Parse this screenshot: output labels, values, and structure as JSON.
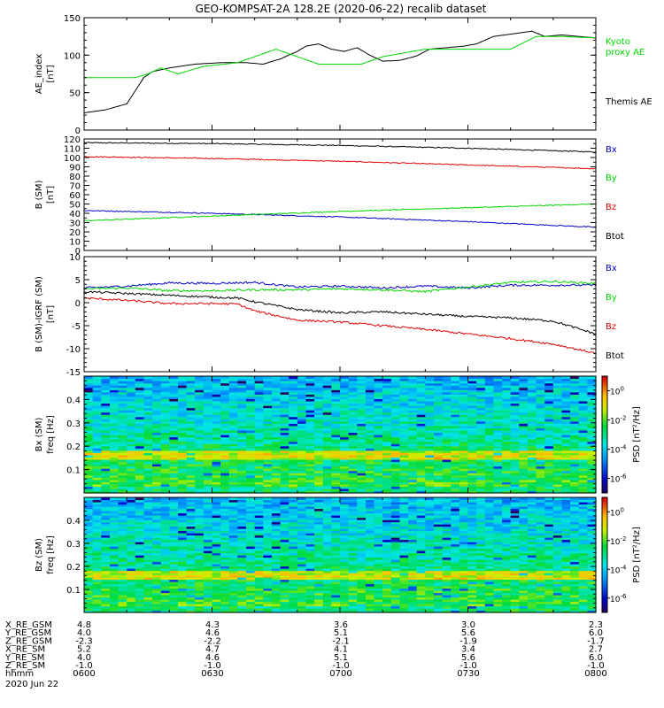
{
  "title": "GEO-KOMPSAT-2A 128.2E (2020-06-22) recalib dataset",
  "colors": {
    "black": "#000000",
    "red": "#e00000",
    "green": "#00d800",
    "blue": "#0000c8"
  },
  "chart_data": [
    {
      "type": "line",
      "ylabel": "AE_index",
      "yunit": "[nT]",
      "ylim": [
        0,
        150
      ],
      "yticks": [
        0,
        50,
        100,
        150
      ],
      "xlim": [
        0,
        120
      ],
      "legend": [
        "Kyoto proxy AE",
        "Themis AE"
      ],
      "series": [
        {
          "name": "Themis AE",
          "color": "black",
          "x": [
            0,
            5,
            10,
            14,
            16,
            20,
            26,
            32,
            38,
            42,
            46,
            50,
            52,
            55,
            58,
            61,
            64,
            67,
            70,
            74,
            78,
            81,
            85,
            89,
            92,
            96,
            100,
            105,
            108,
            112,
            116,
            120
          ],
          "y": [
            23,
            27,
            35,
            70,
            78,
            83,
            88,
            90,
            90,
            88,
            95,
            105,
            112,
            115,
            108,
            105,
            110,
            100,
            92,
            93,
            99,
            108,
            110,
            112,
            115,
            125,
            128,
            132,
            125,
            127,
            125,
            123
          ]
        },
        {
          "name": "Kyoto proxy AE",
          "color": "green",
          "x": [
            0,
            12,
            15,
            18,
            22,
            28,
            36,
            42,
            45,
            50,
            55,
            60,
            65,
            70,
            80,
            85,
            90,
            95,
            100,
            106,
            112,
            120
          ],
          "y": [
            70,
            70,
            75,
            83,
            75,
            85,
            90,
            102,
            108,
            98,
            88,
            88,
            88,
            98,
            108,
            108,
            108,
            108,
            108,
            125,
            125,
            123
          ]
        }
      ]
    },
    {
      "type": "line",
      "ylabel": "B (SM)",
      "yunit": "[nT]",
      "ylim": [
        0,
        120
      ],
      "yticks": [
        0,
        10,
        20,
        30,
        40,
        50,
        60,
        70,
        80,
        90,
        100,
        110,
        120
      ],
      "xlim": [
        0,
        120
      ],
      "legend": [
        "Bx",
        "By",
        "Bz",
        "Btot"
      ],
      "series": [
        {
          "name": "Btot",
          "color": "black",
          "x": [
            0,
            30,
            60,
            90,
            120
          ],
          "y": [
            116,
            115,
            113,
            110,
            106
          ]
        },
        {
          "name": "Bz",
          "color": "red",
          "x": [
            0,
            30,
            60,
            90,
            120
          ],
          "y": [
            101,
            99,
            96,
            92,
            88
          ]
        },
        {
          "name": "Bx",
          "color": "blue",
          "x": [
            0,
            30,
            60,
            90,
            120
          ],
          "y": [
            43,
            40,
            36,
            31,
            25
          ]
        },
        {
          "name": "By",
          "color": "green",
          "x": [
            0,
            30,
            60,
            90,
            120
          ],
          "y": [
            32,
            37,
            42,
            46,
            50
          ]
        }
      ]
    },
    {
      "type": "line",
      "ylabel": "B (SM)-IGRF (SM)",
      "yunit": "[nT]",
      "ylim": [
        -15,
        10
      ],
      "yticks": [
        -15,
        -10,
        -5,
        0,
        5,
        10
      ],
      "xlim": [
        0,
        120
      ],
      "legend": [
        "Bx",
        "By",
        "Bz",
        "Btot"
      ],
      "series": [
        {
          "name": "Bx",
          "color": "blue",
          "x": [
            0,
            10,
            20,
            30,
            40,
            50,
            60,
            70,
            80,
            90,
            100,
            110,
            120
          ],
          "y": [
            3.2,
            3.6,
            4.3,
            4.2,
            4.4,
            3.4,
            3.6,
            3.2,
            3.6,
            3.2,
            3.8,
            3.8,
            3.8
          ]
        },
        {
          "name": "By",
          "color": "green",
          "x": [
            0,
            10,
            20,
            30,
            40,
            50,
            60,
            70,
            80,
            90,
            100,
            110,
            120
          ],
          "y": [
            3.0,
            3.2,
            2.6,
            2.6,
            2.8,
            2.8,
            3.0,
            2.8,
            2.4,
            3.4,
            4.4,
            4.6,
            4.2
          ]
        },
        {
          "name": "Btot",
          "color": "black",
          "x": [
            0,
            10,
            20,
            30,
            36,
            40,
            50,
            60,
            70,
            80,
            90,
            100,
            110,
            120
          ],
          "y": [
            2.4,
            2.0,
            1.6,
            1.2,
            1.0,
            0.2,
            -1.5,
            -2.2,
            -2.0,
            -2.5,
            -3.0,
            -3.3,
            -4.0,
            -6.8
          ]
        },
        {
          "name": "Bz",
          "color": "red",
          "x": [
            0,
            10,
            20,
            30,
            36,
            40,
            50,
            60,
            70,
            80,
            90,
            100,
            110,
            120
          ],
          "y": [
            1.0,
            0.5,
            -0.2,
            -0.2,
            -0.3,
            -1.8,
            -3.8,
            -4.2,
            -5.0,
            -5.8,
            -6.8,
            -7.8,
            -9.0,
            -11.0
          ]
        }
      ]
    },
    {
      "type": "heatmap",
      "ylabel": "Bx (SM)",
      "yunit": "freq [Hz]",
      "ylim": [
        0,
        0.5
      ],
      "yticks": [
        0.1,
        0.2,
        0.3,
        0.4
      ],
      "xlim": [
        0,
        120
      ],
      "colorbar": {
        "label": "PSD [nT^2/Hz]",
        "ticks": [
          "10^0",
          "10^-2",
          "10^-4",
          "10^-6"
        ],
        "exponents": [
          0,
          -2,
          -4,
          -6
        ],
        "range": [
          -7,
          1
        ]
      }
    },
    {
      "type": "heatmap",
      "ylabel": "Bz (SM)",
      "yunit": "freq [Hz]",
      "ylim": [
        0,
        0.5
      ],
      "yticks": [
        0.1,
        0.2,
        0.3,
        0.4
      ],
      "xlim": [
        0,
        120
      ],
      "colorbar": {
        "label": "PSD [nT^2/Hz]",
        "ticks": [
          "10^0",
          "10^-2",
          "10^-4",
          "10^-6"
        ],
        "exponents": [
          0,
          -2,
          -4,
          -6
        ],
        "range": [
          -7,
          1
        ]
      }
    }
  ],
  "orbit_table": {
    "rows": [
      {
        "label": "X_RE_GSM",
        "values": [
          "4.8",
          "4.3",
          "3.6",
          "3.0",
          "2.3"
        ]
      },
      {
        "label": "Y_RE_GSM",
        "values": [
          "4.0",
          "4.6",
          "5.1",
          "5.6",
          "6.0"
        ]
      },
      {
        "label": "Z_RE_GSM",
        "values": [
          "-2.3",
          "-2.2",
          "-2.1",
          "-1.9",
          "-1.7"
        ]
      },
      {
        "label": "X_RE_SM",
        "values": [
          "5.2",
          "4.7",
          "4.1",
          "3.4",
          "2.7"
        ]
      },
      {
        "label": "Y_RE_SM",
        "values": [
          "4.0",
          "4.6",
          "5.1",
          "5.6",
          "6.0"
        ]
      },
      {
        "label": "Z_RE_SM",
        "values": [
          "-1.0",
          "-1.0",
          "-1.0",
          "-1.0",
          "-1.0"
        ]
      },
      {
        "label": "hhmm",
        "values": [
          "0600",
          "0630",
          "0700",
          "0730",
          "0800"
        ]
      }
    ],
    "date": "2020 Jun 22"
  }
}
